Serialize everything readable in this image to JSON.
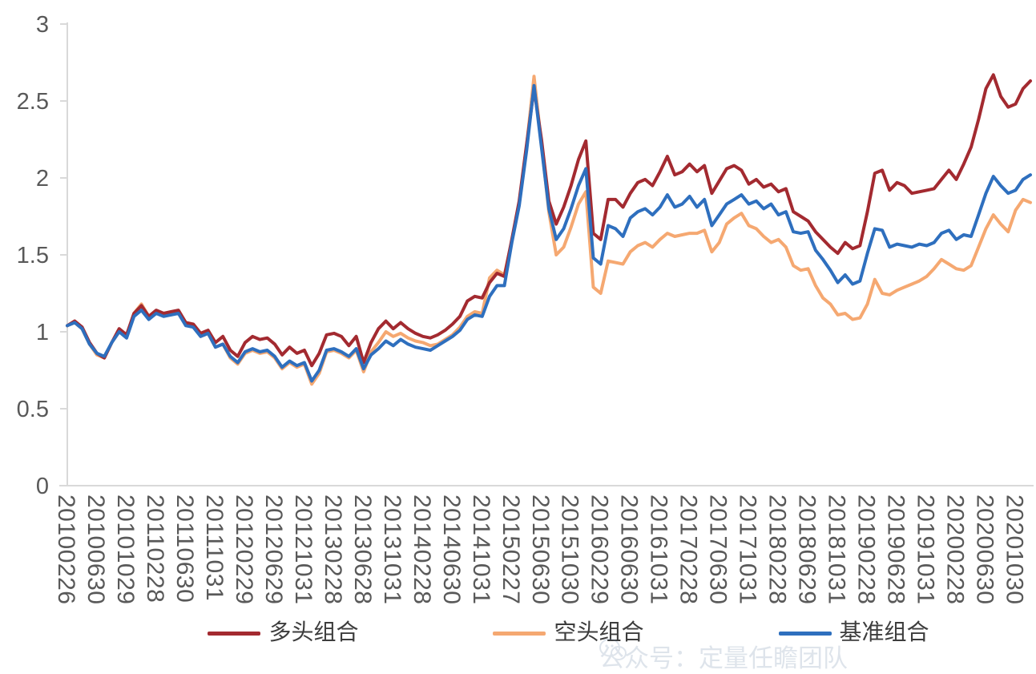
{
  "chart_data": {
    "type": "line",
    "title": "",
    "xlabel": "",
    "ylabel": "",
    "ylim": [
      0,
      3
    ],
    "grid": false,
    "legend_position": "bottom",
    "axis_color": "#d9d9d9",
    "tick_label_color": "#595959",
    "y_tick_labels": [
      "0",
      "0.5",
      "1",
      "1.5",
      "2",
      "2.5",
      "3"
    ],
    "x_tick_labels": [
      "20100226",
      "20100630",
      "20101029",
      "20110228",
      "20110630",
      "20111031",
      "20120229",
      "20120629",
      "20121031",
      "20130228",
      "20130628",
      "20131031",
      "20140228",
      "20140630",
      "20141031",
      "20150227",
      "20150630",
      "20151030",
      "20160229",
      "20160630",
      "20161031",
      "20170228",
      "20170630",
      "20171031",
      "20180228",
      "20180629",
      "20181031",
      "20190228",
      "20190628",
      "20191031",
      "20200228",
      "20200630",
      "20201030"
    ],
    "x_points_per_tick": 4,
    "series": [
      {
        "name": "多头组合",
        "color": "#a32a30",
        "values": [
          1.04,
          1.07,
          1.03,
          0.93,
          0.86,
          0.83,
          0.93,
          1.02,
          0.98,
          1.12,
          1.17,
          1.1,
          1.14,
          1.12,
          1.13,
          1.14,
          1.06,
          1.05,
          0.99,
          1.01,
          0.93,
          0.97,
          0.88,
          0.84,
          0.93,
          0.97,
          0.95,
          0.96,
          0.92,
          0.85,
          0.9,
          0.86,
          0.88,
          0.78,
          0.86,
          0.98,
          0.99,
          0.97,
          0.91,
          0.97,
          0.8,
          0.93,
          1.02,
          1.07,
          1.02,
          1.06,
          1.02,
          0.99,
          0.97,
          0.96,
          0.98,
          1.01,
          1.05,
          1.1,
          1.2,
          1.23,
          1.22,
          1.32,
          1.38,
          1.36,
          1.6,
          1.85,
          2.22,
          2.58,
          2.25,
          1.85,
          1.7,
          1.81,
          1.95,
          2.12,
          2.24,
          1.64,
          1.6,
          1.86,
          1.86,
          1.81,
          1.9,
          1.97,
          1.99,
          1.95,
          2.04,
          2.14,
          2.02,
          2.04,
          2.09,
          2.04,
          2.08,
          1.9,
          1.98,
          2.06,
          2.08,
          2.05,
          1.96,
          1.99,
          1.94,
          1.96,
          1.91,
          1.93,
          1.78,
          1.75,
          1.72,
          1.65,
          1.6,
          1.55,
          1.51,
          1.58,
          1.54,
          1.56,
          1.78,
          2.03,
          2.05,
          1.92,
          1.97,
          1.95,
          1.9,
          1.91,
          1.92,
          1.93,
          1.99,
          2.05,
          1.99,
          2.09,
          2.2,
          2.38,
          2.58,
          2.67,
          2.53,
          2.46,
          2.48,
          2.58,
          2.63
        ]
      },
      {
        "name": "空头组合",
        "color": "#f5a871",
        "values": [
          1.04,
          1.06,
          1.02,
          0.92,
          0.85,
          0.83,
          0.93,
          1.0,
          0.97,
          1.12,
          1.18,
          1.1,
          1.13,
          1.11,
          1.12,
          1.13,
          1.05,
          1.04,
          0.97,
          0.99,
          0.9,
          0.92,
          0.83,
          0.79,
          0.86,
          0.88,
          0.86,
          0.87,
          0.83,
          0.76,
          0.8,
          0.77,
          0.79,
          0.66,
          0.73,
          0.87,
          0.88,
          0.86,
          0.83,
          0.88,
          0.74,
          0.87,
          0.93,
          1.0,
          0.97,
          0.99,
          0.96,
          0.94,
          0.93,
          0.91,
          0.92,
          0.95,
          0.98,
          1.03,
          1.1,
          1.13,
          1.12,
          1.35,
          1.4,
          1.37,
          1.59,
          1.83,
          2.21,
          2.66,
          2.22,
          1.78,
          1.5,
          1.55,
          1.68,
          1.83,
          1.91,
          1.29,
          1.25,
          1.46,
          1.45,
          1.44,
          1.52,
          1.56,
          1.58,
          1.55,
          1.6,
          1.64,
          1.62,
          1.63,
          1.64,
          1.64,
          1.66,
          1.52,
          1.58,
          1.7,
          1.74,
          1.77,
          1.69,
          1.67,
          1.62,
          1.58,
          1.6,
          1.55,
          1.43,
          1.4,
          1.41,
          1.3,
          1.22,
          1.18,
          1.11,
          1.12,
          1.08,
          1.09,
          1.18,
          1.34,
          1.25,
          1.24,
          1.27,
          1.29,
          1.31,
          1.33,
          1.36,
          1.41,
          1.47,
          1.44,
          1.41,
          1.4,
          1.43,
          1.55,
          1.67,
          1.76,
          1.7,
          1.65,
          1.79,
          1.86,
          1.84
        ]
      },
      {
        "name": "基准组合",
        "color": "#2e6fbe",
        "values": [
          1.04,
          1.06,
          1.02,
          0.92,
          0.86,
          0.84,
          0.93,
          1.0,
          0.96,
          1.1,
          1.14,
          1.08,
          1.12,
          1.1,
          1.11,
          1.12,
          1.04,
          1.03,
          0.97,
          0.99,
          0.9,
          0.92,
          0.84,
          0.8,
          0.87,
          0.89,
          0.87,
          0.88,
          0.84,
          0.77,
          0.81,
          0.78,
          0.8,
          0.68,
          0.75,
          0.88,
          0.89,
          0.87,
          0.84,
          0.89,
          0.76,
          0.85,
          0.89,
          0.94,
          0.91,
          0.95,
          0.92,
          0.9,
          0.89,
          0.88,
          0.91,
          0.94,
          0.97,
          1.01,
          1.08,
          1.11,
          1.1,
          1.23,
          1.3,
          1.3,
          1.58,
          1.82,
          2.18,
          2.6,
          2.2,
          1.8,
          1.6,
          1.67,
          1.8,
          1.95,
          2.06,
          1.48,
          1.44,
          1.69,
          1.67,
          1.62,
          1.74,
          1.78,
          1.8,
          1.76,
          1.81,
          1.89,
          1.81,
          1.83,
          1.88,
          1.81,
          1.86,
          1.69,
          1.76,
          1.83,
          1.86,
          1.89,
          1.83,
          1.85,
          1.8,
          1.83,
          1.76,
          1.78,
          1.65,
          1.64,
          1.65,
          1.53,
          1.47,
          1.4,
          1.32,
          1.37,
          1.31,
          1.33,
          1.51,
          1.67,
          1.66,
          1.55,
          1.57,
          1.56,
          1.55,
          1.57,
          1.56,
          1.58,
          1.64,
          1.66,
          1.6,
          1.63,
          1.62,
          1.76,
          1.9,
          2.01,
          1.95,
          1.9,
          1.92,
          1.99,
          2.02
        ]
      }
    ]
  },
  "watermark": {
    "icon": "wechat-icon",
    "text": "公众号：定量任瞻团队"
  }
}
